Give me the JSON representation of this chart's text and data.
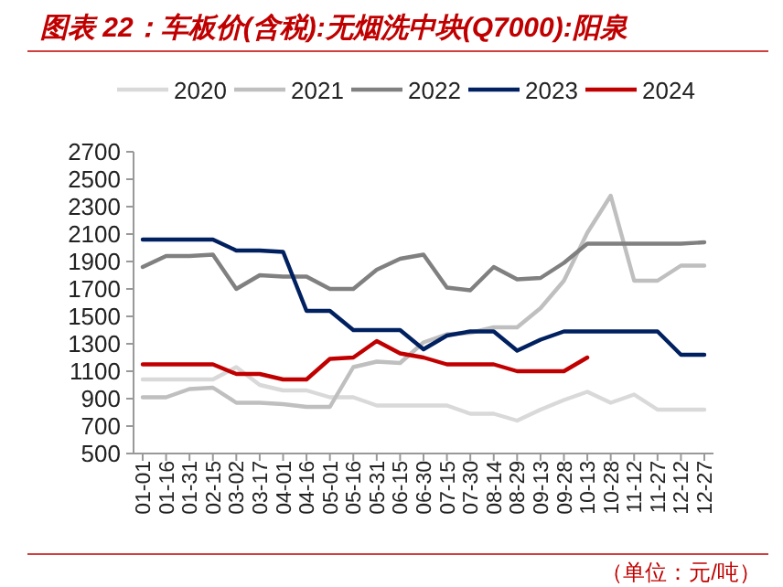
{
  "chart_data": {
    "type": "line",
    "title": "图表 22：车板价(含税):无烟洗中块(Q7000):阳泉",
    "categories": [
      "01-01",
      "01-16",
      "01-31",
      "02-15",
      "03-02",
      "03-17",
      "04-01",
      "04-16",
      "05-01",
      "05-16",
      "05-31",
      "06-15",
      "06-30",
      "07-15",
      "07-30",
      "08-14",
      "08-29",
      "09-13",
      "09-28",
      "10-13",
      "10-28",
      "11-12",
      "11-27",
      "12-12",
      "12-27"
    ],
    "series": [
      {
        "name": "2020",
        "color": "#d9d9d9",
        "values": [
          1040,
          1040,
          1040,
          1040,
          1130,
          1000,
          960,
          960,
          910,
          910,
          850,
          850,
          850,
          850,
          790,
          790,
          740,
          820,
          890,
          950,
          870,
          930,
          820,
          820,
          820
        ]
      },
      {
        "name": "2021",
        "color": "#bfbfbf",
        "values": [
          910,
          910,
          970,
          980,
          870,
          870,
          860,
          840,
          840,
          1130,
          1170,
          1160,
          1310,
          1370,
          1380,
          1420,
          1420,
          1560,
          1760,
          2110,
          2380,
          1760,
          1760,
          1870,
          1870
        ]
      },
      {
        "name": "2022",
        "color": "#808080",
        "values": [
          1860,
          1940,
          1940,
          1950,
          1700,
          1800,
          1790,
          1790,
          1700,
          1700,
          1840,
          1920,
          1950,
          1710,
          1690,
          1860,
          1770,
          1780,
          1890,
          2030,
          2030,
          2030,
          2030,
          2030,
          2040
        ]
      },
      {
        "name": "2023",
        "color": "#002060",
        "values": [
          2060,
          2060,
          2060,
          2060,
          1980,
          1980,
          1970,
          1540,
          1540,
          1400,
          1400,
          1400,
          1260,
          1360,
          1390,
          1390,
          1250,
          1330,
          1390,
          1390,
          1390,
          1390,
          1390,
          1220,
          1220
        ]
      },
      {
        "name": "2024",
        "color": "#c00000",
        "values": [
          1150,
          1150,
          1150,
          1150,
          1080,
          1080,
          1040,
          1040,
          1190,
          1200,
          1320,
          1230,
          1200,
          1150,
          1150,
          1150,
          1100,
          1100,
          1100,
          1200,
          null,
          null,
          null,
          null,
          null
        ]
      }
    ],
    "ylim": [
      500,
      2700
    ],
    "yticks": [
      500,
      700,
      900,
      1100,
      1300,
      1500,
      1700,
      1900,
      2100,
      2300,
      2500,
      2700
    ],
    "legend": "top",
    "annotations": [
      "（单位：元/吨）"
    ]
  }
}
